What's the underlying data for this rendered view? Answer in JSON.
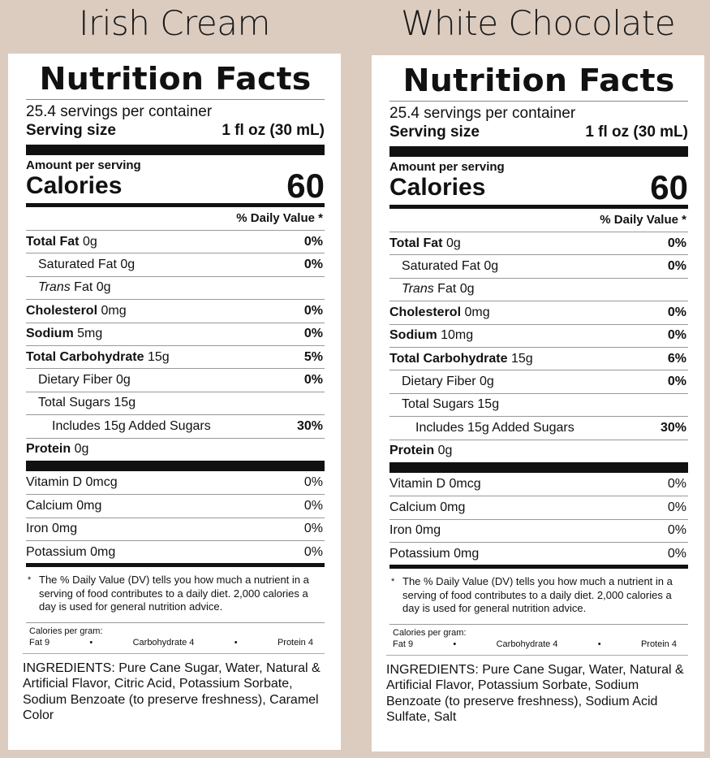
{
  "labels": [
    {
      "product": "Irish Cream",
      "nf_title": "Nutrition Facts",
      "servings": "25.4 servings per container",
      "serving_size_label": "Serving size",
      "serving_size_value": "1 fl oz (30 mL)",
      "amount_per_serving": "Amount per serving",
      "calories_label": "Calories",
      "calories_value": "60",
      "dv_header": "% Daily Value *",
      "nutrients": [
        {
          "name": "Total Fat",
          "amount": "0g",
          "dv": "0%"
        },
        {
          "name": "Saturated Fat",
          "amount": "0g",
          "dv": "0%"
        },
        {
          "name": "Trans",
          "amount": "Fat 0g",
          "dv": ""
        },
        {
          "name": "Cholesterol",
          "amount": "0mg",
          "dv": "0%"
        },
        {
          "name": "Sodium",
          "amount": "5mg",
          "dv": "0%"
        },
        {
          "name": "Total Carbohydrate",
          "amount": "15g",
          "dv": "5%"
        },
        {
          "name": "Dietary Fiber",
          "amount": "0g",
          "dv": "0%"
        },
        {
          "name": "Total Sugars",
          "amount": "15g",
          "dv": ""
        },
        {
          "name": "Includes 15g Added Sugars",
          "amount": "",
          "dv": "30%"
        },
        {
          "name": "Protein",
          "amount": "0g",
          "dv": ""
        }
      ],
      "vitamins": [
        {
          "name": "Vitamin D 0mcg",
          "dv": "0%"
        },
        {
          "name": "Calcium 0mg",
          "dv": "0%"
        },
        {
          "name": "Iron 0mg",
          "dv": "0%"
        },
        {
          "name": "Potassium 0mg",
          "dv": "0%"
        }
      ],
      "footnote_star": "*",
      "footnote": "The % Daily Value (DV) tells you how much a nutrient in a serving of food contributes to a daily diet. 2,000 calories a day is used for general nutrition advice.",
      "calories_per_gram_label": "Calories per gram:",
      "cpg_fat": "Fat 9",
      "cpg_carb": "Carbohydrate 4",
      "cpg_protein": "Protein 4",
      "cpg_sep": "•",
      "ingredients": "INGREDIENTS: Pure Cane Sugar, Water, Natural & Artificial Flavor, Citric Acid, Potassium Sorbate, Sodium Benzoate (to preserve freshness), Caramel Color"
    },
    {
      "product": "White Chocolate",
      "nf_title": "Nutrition Facts",
      "servings": "25.4 servings per container",
      "serving_size_label": "Serving size",
      "serving_size_value": "1 fl oz (30 mL)",
      "amount_per_serving": "Amount per serving",
      "calories_label": "Calories",
      "calories_value": "60",
      "dv_header": "% Daily Value *",
      "nutrients": [
        {
          "name": "Total Fat",
          "amount": "0g",
          "dv": "0%"
        },
        {
          "name": "Saturated Fat",
          "amount": "0g",
          "dv": "0%"
        },
        {
          "name": "Trans",
          "amount": "Fat 0g",
          "dv": ""
        },
        {
          "name": "Cholesterol",
          "amount": "0mg",
          "dv": "0%"
        },
        {
          "name": "Sodium",
          "amount": "10mg",
          "dv": "0%"
        },
        {
          "name": "Total Carbohydrate",
          "amount": "15g",
          "dv": "6%"
        },
        {
          "name": "Dietary Fiber",
          "amount": "0g",
          "dv": "0%"
        },
        {
          "name": "Total Sugars",
          "amount": "15g",
          "dv": ""
        },
        {
          "name": "Includes 15g Added Sugars",
          "amount": "",
          "dv": "30%"
        },
        {
          "name": "Protein",
          "amount": "0g",
          "dv": ""
        }
      ],
      "vitamins": [
        {
          "name": "Vitamin D 0mcg",
          "dv": "0%"
        },
        {
          "name": "Calcium 0mg",
          "dv": "0%"
        },
        {
          "name": "Iron 0mg",
          "dv": "0%"
        },
        {
          "name": "Potassium 0mg",
          "dv": "0%"
        }
      ],
      "footnote_star": "*",
      "footnote": "The % Daily Value (DV) tells you how much a nutrient in a serving of food contributes to a daily diet. 2,000 calories a day is used for general nutrition advice.",
      "calories_per_gram_label": "Calories per gram:",
      "cpg_fat": "Fat 9",
      "cpg_carb": "Carbohydrate 4",
      "cpg_protein": "Protein 4",
      "cpg_sep": "•",
      "ingredients": "INGREDIENTS: Pure Cane Sugar, Water, Natural & Artificial Flavor, Potassium Sorbate, Sodium Benzoate (to preserve freshness), Sodium Acid Sulfate, Salt"
    }
  ]
}
